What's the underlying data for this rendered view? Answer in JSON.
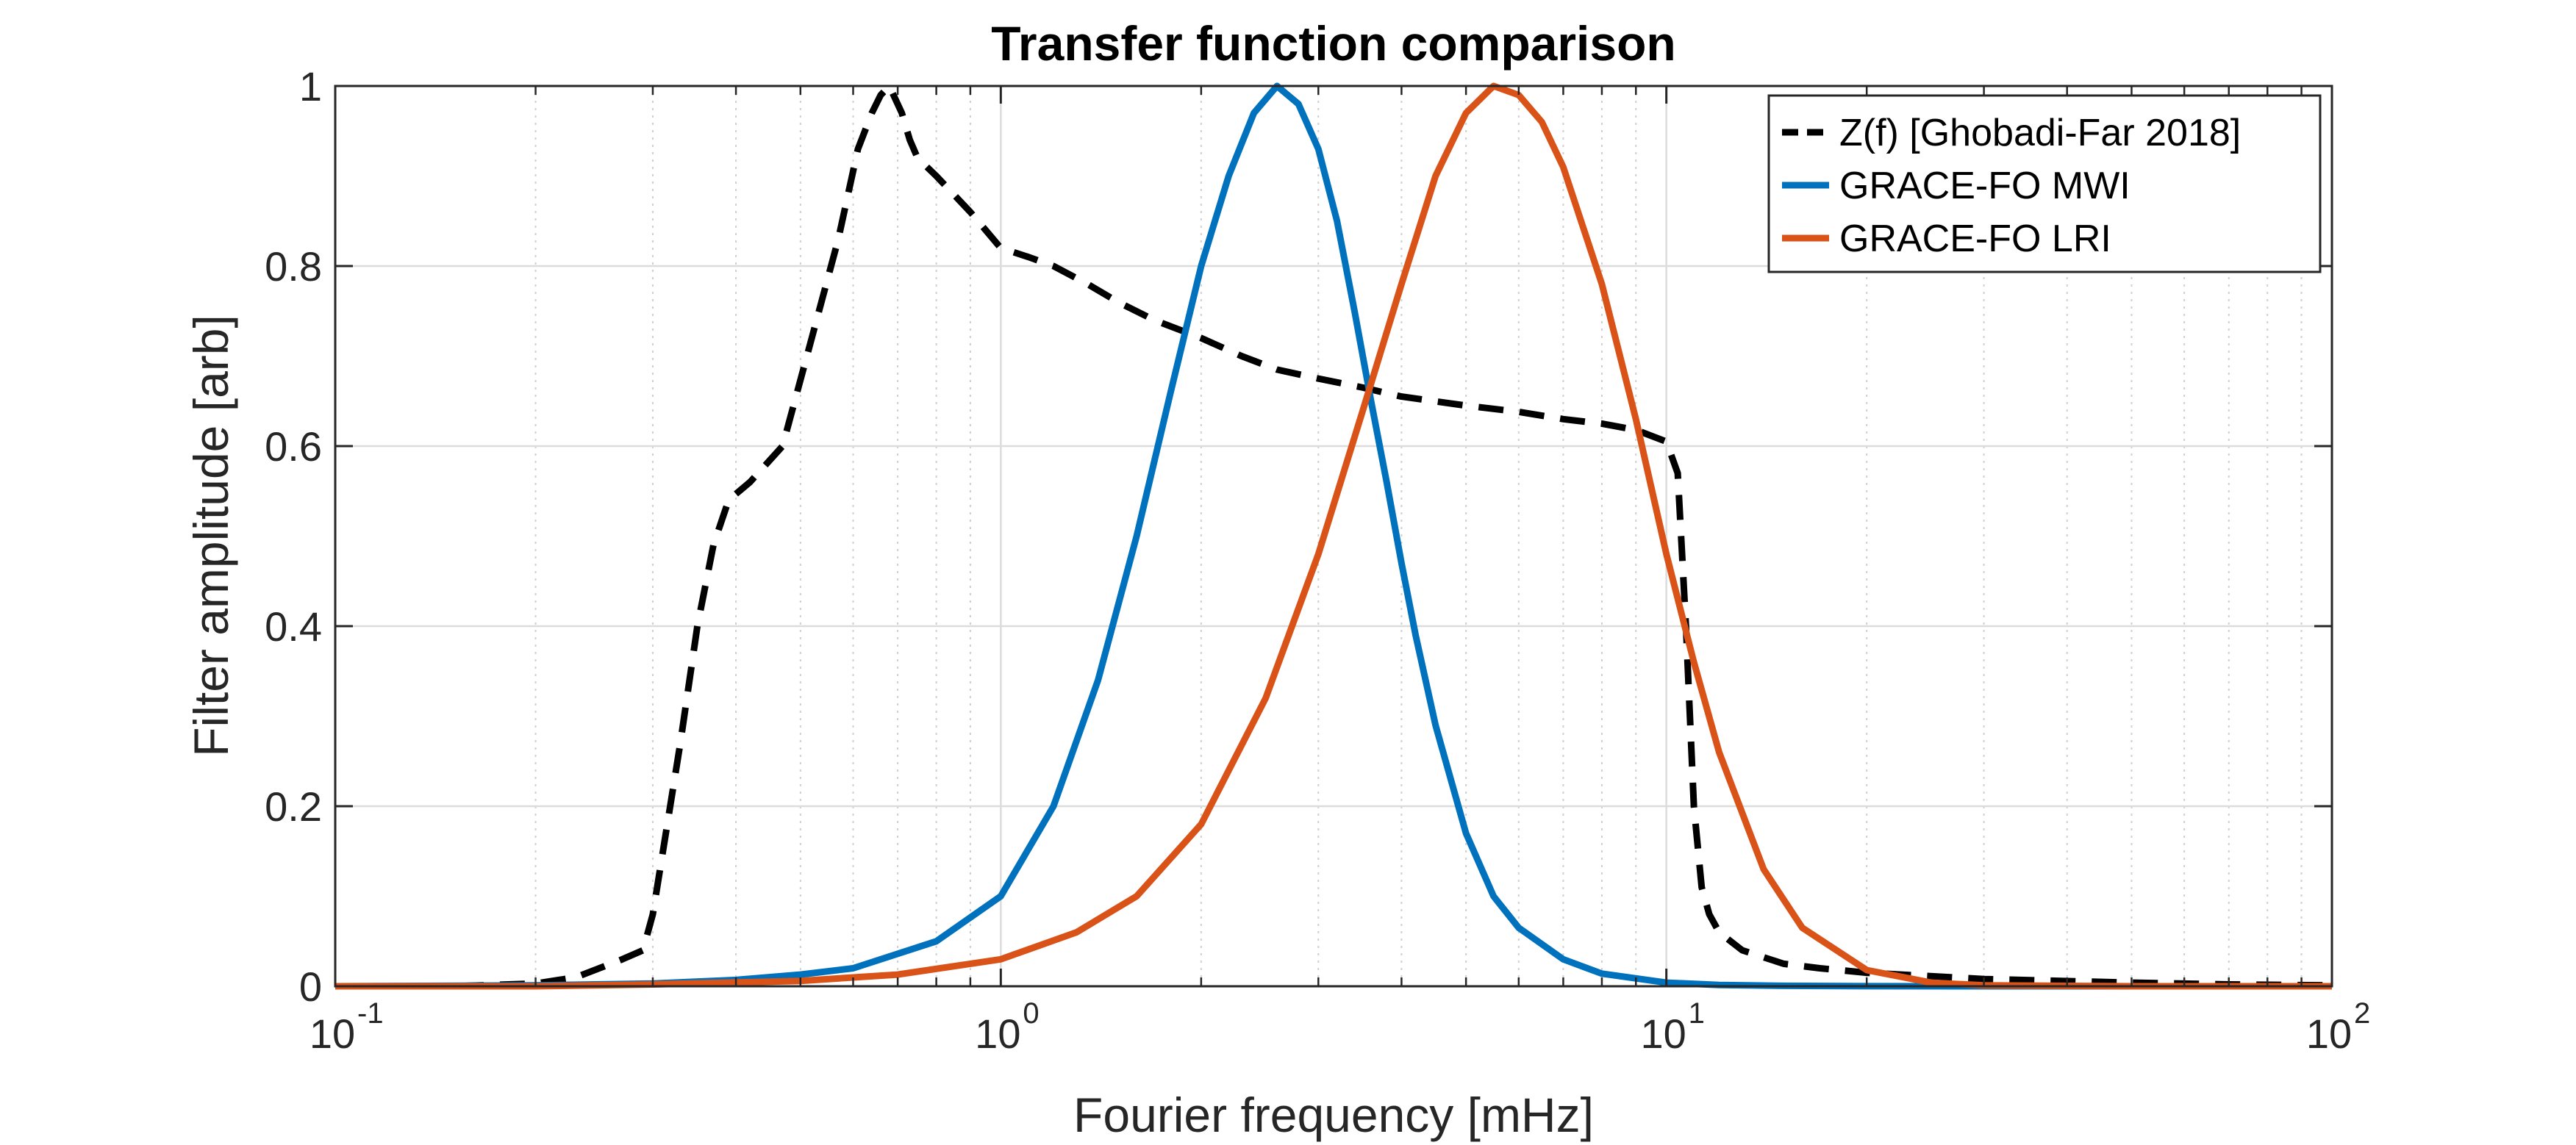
{
  "chart_data": {
    "type": "line",
    "title": "Transfer function comparison",
    "xlabel": "Fourier frequency [mHz]",
    "ylabel": "Filter amplitude [arb]",
    "xscale": "log",
    "xlim": [
      0.1,
      100
    ],
    "ylim": [
      0,
      1
    ],
    "x_ticks": [
      {
        "base": "10",
        "exp": "-1",
        "value": 0.1
      },
      {
        "base": "10",
        "exp": "0",
        "value": 1
      },
      {
        "base": "10",
        "exp": "1",
        "value": 10
      },
      {
        "base": "10",
        "exp": "2",
        "value": 100
      }
    ],
    "y_ticks": [
      "0",
      "0.2",
      "0.4",
      "0.6",
      "0.8",
      "1"
    ],
    "grid": true,
    "legend_position": "top-right",
    "series": [
      {
        "name": "Z(f) [Ghobadi-Far 2018]",
        "color": "#000000",
        "style": "dashed",
        "x": [
          0.1,
          0.15,
          0.2,
          0.23,
          0.27,
          0.29,
          0.3,
          0.33,
          0.35,
          0.37,
          0.39,
          0.42,
          0.47,
          0.52,
          0.57,
          0.61,
          0.64,
          0.66,
          0.68,
          0.71,
          0.73,
          0.75,
          0.8,
          0.9,
          1.0,
          1.1,
          1.2,
          1.35,
          1.5,
          1.7,
          2.0,
          2.3,
          2.6,
          3.0,
          3.5,
          4.0,
          5.0,
          6.0,
          7.0,
          8.0,
          9.0,
          10.0,
          10.4,
          10.7,
          11.0,
          11.3,
          11.6,
          12.0,
          13.0,
          15.0,
          17.0,
          20.0,
          30.0,
          50.0,
          70.0,
          100.0
        ],
        "y": [
          0,
          0,
          0.003,
          0.01,
          0.03,
          0.04,
          0.08,
          0.27,
          0.4,
          0.49,
          0.54,
          0.56,
          0.6,
          0.72,
          0.83,
          0.93,
          0.97,
          0.99,
          1.0,
          0.97,
          0.94,
          0.92,
          0.9,
          0.86,
          0.82,
          0.81,
          0.8,
          0.78,
          0.76,
          0.74,
          0.72,
          0.7,
          0.685,
          0.675,
          0.665,
          0.655,
          0.645,
          0.638,
          0.63,
          0.625,
          0.618,
          0.605,
          0.57,
          0.4,
          0.2,
          0.11,
          0.08,
          0.06,
          0.04,
          0.025,
          0.02,
          0.015,
          0.008,
          0.004,
          0.002,
          0.001
        ]
      },
      {
        "name": "GRACE-FO MWI",
        "color": "#0072BD",
        "style": "solid",
        "x": [
          0.1,
          0.2,
          0.3,
          0.4,
          0.5,
          0.6,
          0.8,
          1.0,
          1.2,
          1.4,
          1.6,
          1.8,
          2.0,
          2.2,
          2.4,
          2.6,
          2.8,
          3.0,
          3.2,
          3.4,
          3.6,
          3.8,
          4.0,
          4.2,
          4.5,
          5.0,
          5.5,
          6.0,
          7.0,
          8.0,
          10.0,
          12.0,
          15.0,
          20.0,
          30.0,
          100.0
        ],
        "y": [
          0,
          0.001,
          0.003,
          0.007,
          0.013,
          0.02,
          0.05,
          0.1,
          0.2,
          0.34,
          0.5,
          0.66,
          0.8,
          0.9,
          0.97,
          1.0,
          0.98,
          0.93,
          0.85,
          0.75,
          0.65,
          0.56,
          0.47,
          0.39,
          0.29,
          0.17,
          0.1,
          0.065,
          0.03,
          0.014,
          0.004,
          0.0015,
          0.0005,
          0.0001,
          0,
          0
        ]
      },
      {
        "name": "GRACE-FO LRI",
        "color": "#D95319",
        "style": "solid",
        "x": [
          0.1,
          0.2,
          0.3,
          0.5,
          0.7,
          1.0,
          1.3,
          1.6,
          2.0,
          2.5,
          3.0,
          3.5,
          4.0,
          4.5,
          5.0,
          5.5,
          6.0,
          6.5,
          7.0,
          8.0,
          9.0,
          10.0,
          11.0,
          12.0,
          14.0,
          16.0,
          20.0,
          25.0,
          30.0,
          50.0,
          100.0
        ],
        "y": [
          0,
          0,
          0.002,
          0.006,
          0.013,
          0.03,
          0.06,
          0.1,
          0.18,
          0.32,
          0.48,
          0.64,
          0.78,
          0.9,
          0.97,
          1.0,
          0.99,
          0.96,
          0.91,
          0.78,
          0.63,
          0.48,
          0.36,
          0.26,
          0.13,
          0.065,
          0.018,
          0.004,
          0.001,
          0,
          0
        ]
      }
    ]
  }
}
